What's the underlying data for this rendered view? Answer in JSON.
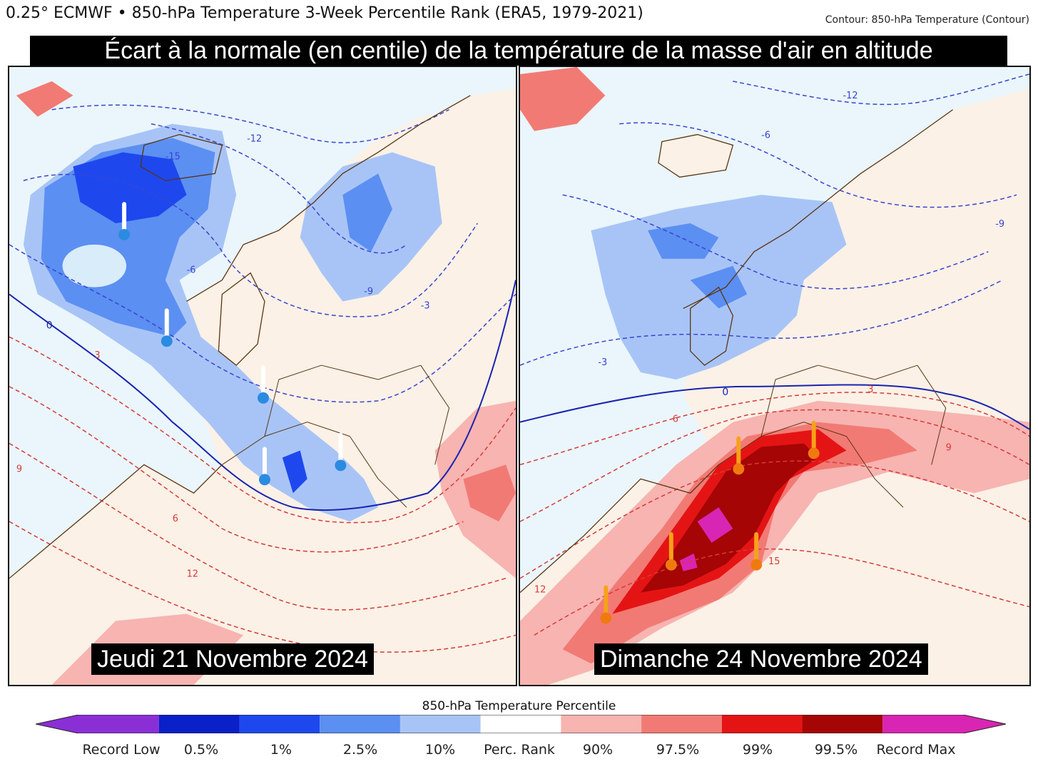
{
  "header": {
    "title": "0.25° ECMWF • 850-hPa Temperature 3-Week Percentile Rank (ERA5, 1979-2021)",
    "contour_note": "Contour: 850-hPa Temperature (Contour)"
  },
  "banner": "Écart à la normale (en centile) de la température de la masse d'air en altitude",
  "panels": [
    {
      "date_label": "Jeudi 21 Novembre 2024",
      "anomaly": "cold",
      "thermometer_color": "#2a8be0",
      "contour_labels": [
        "0",
        "3",
        "6",
        "9",
        "12",
        "-3",
        "-6",
        "-9",
        "-12",
        "-15"
      ]
    },
    {
      "date_label": "Dimanche 24 Novembre 2024",
      "anomaly": "warm",
      "thermometer_color": "#f07a10",
      "contour_labels": [
        "0",
        "3",
        "6",
        "9",
        "12",
        "15",
        "-3",
        "-6",
        "-9",
        "-12"
      ]
    }
  ],
  "colorbar": {
    "title": "850-hPa Temperature Percentile",
    "labels": [
      "Record Low",
      "0.5%",
      "1%",
      "2.5%",
      "10%",
      "Perc. Rank",
      "90%",
      "97.5%",
      "99%",
      "99.5%",
      "Record Max"
    ],
    "colors": [
      "#8a2fd6",
      "#0a20c8",
      "#1e48ee",
      "#5b8ff2",
      "#a8c4f7",
      "#ffffff",
      "#f7b4b1",
      "#f27a74",
      "#e51414",
      "#a50505",
      "#d925b3"
    ]
  }
}
